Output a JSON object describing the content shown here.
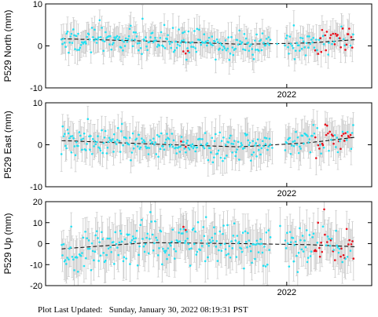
{
  "footer_text": "Plot Last Updated:   Sunday, January 30, 2022 08:19:31 PST",
  "colors": {
    "point": "#22e0f2",
    "recent": "#e8101c",
    "error_bar": "#c8c8c8",
    "trend": "#000000"
  },
  "chart_data": [
    {
      "type": "scatter",
      "ylabel": "P529 North (mm)",
      "ylim": [
        -10,
        10
      ],
      "yticks": [
        -10,
        0,
        10
      ],
      "xlim": [
        2020.95,
        2022.37
      ],
      "xticks": [
        2022
      ],
      "xticklabels": [
        "2022"
      ],
      "trend": [
        [
          2021.02,
          1.7
        ],
        [
          2021.5,
          1.0
        ],
        [
          2021.8,
          0.4
        ],
        [
          2022.1,
          0.7
        ],
        [
          2022.3,
          1.5
        ]
      ],
      "noise": 1.6,
      "error_bar": 2.8,
      "recent_start": 2022.12,
      "extra_red": [
        [
          2021.55,
          -1.3
        ],
        [
          2021.56,
          -1.8
        ],
        [
          2021.57,
          -1.2
        ]
      ]
    },
    {
      "type": "scatter",
      "ylabel": "P529 East (mm)",
      "ylim": [
        -10,
        10
      ],
      "yticks": [
        -10,
        0,
        10
      ],
      "xlim": [
        2020.95,
        2022.37
      ],
      "xticks": [
        2022
      ],
      "xticklabels": [
        "2022"
      ],
      "trend": [
        [
          2021.02,
          1.0
        ],
        [
          2021.5,
          0.0
        ],
        [
          2021.8,
          -0.5
        ],
        [
          2022.1,
          0.5
        ],
        [
          2022.3,
          1.8
        ]
      ],
      "noise": 1.7,
      "error_bar": 3.2,
      "recent_start": 2022.12,
      "extra_red": [
        [
          2021.54,
          0.8
        ],
        [
          2021.56,
          -0.5
        ]
      ]
    },
    {
      "type": "scatter",
      "ylabel": "P529 Up (mm)",
      "ylim": [
        -20,
        20
      ],
      "yticks": [
        -20,
        -10,
        0,
        10,
        20
      ],
      "xlim": [
        2020.95,
        2022.37
      ],
      "xticks": [
        2022
      ],
      "xticklabels": [
        "2022"
      ],
      "trend": [
        [
          2021.02,
          -2.5
        ],
        [
          2021.4,
          0.5
        ],
        [
          2021.8,
          0.0
        ],
        [
          2022.1,
          -0.5
        ],
        [
          2022.3,
          -1.5
        ]
      ],
      "noise": 5.0,
      "error_bar": 8.0,
      "recent_start": 2022.12,
      "extra_red": [
        [
          2021.55,
          8.0
        ],
        [
          2021.56,
          6.5
        ]
      ]
    }
  ]
}
